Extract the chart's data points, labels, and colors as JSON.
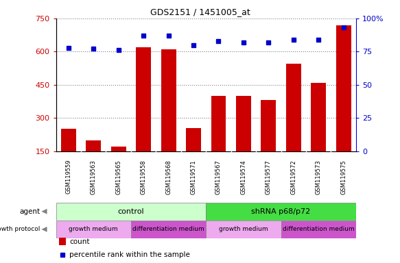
{
  "title": "GDS2151 / 1451005_at",
  "samples": [
    "GSM119559",
    "GSM119563",
    "GSM119565",
    "GSM119558",
    "GSM119568",
    "GSM119571",
    "GSM119567",
    "GSM119574",
    "GSM119577",
    "GSM119572",
    "GSM119573",
    "GSM119575"
  ],
  "counts": [
    250,
    200,
    170,
    620,
    610,
    255,
    400,
    400,
    380,
    545,
    460,
    720
  ],
  "percentile_ranks": [
    78,
    77,
    76,
    87,
    87,
    80,
    83,
    82,
    82,
    84,
    84,
    93
  ],
  "bar_color": "#cc0000",
  "dot_color": "#0000cc",
  "ylim_left": [
    150,
    750
  ],
  "ylim_right": [
    0,
    100
  ],
  "yticks_left": [
    150,
    300,
    450,
    600,
    750
  ],
  "yticks_right": [
    0,
    25,
    50,
    75,
    100
  ],
  "agent_groups": [
    {
      "label": "control",
      "start": 0,
      "end": 6,
      "color": "#ccffcc"
    },
    {
      "label": "shRNA p68/p72",
      "start": 6,
      "end": 12,
      "color": "#44dd44"
    }
  ],
  "growth_groups": [
    {
      "label": "growth medium",
      "start": 0,
      "end": 3,
      "color": "#eeaaee"
    },
    {
      "label": "differentiation medium",
      "start": 3,
      "end": 6,
      "color": "#cc55cc"
    },
    {
      "label": "growth medium",
      "start": 6,
      "end": 9,
      "color": "#eeaaee"
    },
    {
      "label": "differentiation medium",
      "start": 9,
      "end": 12,
      "color": "#cc55cc"
    }
  ],
  "legend_count_color": "#cc0000",
  "legend_dot_color": "#0000cc",
  "sample_bg_color": "#d8d8d8",
  "fig_width": 5.83,
  "fig_height": 3.84
}
